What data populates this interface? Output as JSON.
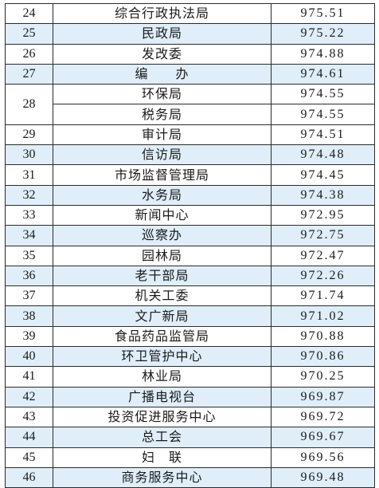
{
  "rows": [
    {
      "rank": "24",
      "unit": "综合行政执法局",
      "score": "975.51",
      "shaded": false
    },
    {
      "rank": "25",
      "unit": "民政局",
      "score": "975.22",
      "shaded": true
    },
    {
      "rank": "26",
      "unit": "发改委",
      "score": "974.88",
      "shaded": false
    },
    {
      "rank": "27",
      "unit": "编　　办",
      "score": "974.61",
      "shaded": true
    },
    {
      "rank": "28",
      "unit": "环保局",
      "score": "974.55",
      "shaded": false,
      "rowspan": 2
    },
    {
      "rank": "",
      "unit": "税务局",
      "score": "974.55",
      "shaded": false,
      "merged": true
    },
    {
      "rank": "29",
      "unit": "审计局",
      "score": "974.51",
      "shaded": false
    },
    {
      "rank": "30",
      "unit": "信访局",
      "score": "974.48",
      "shaded": true
    },
    {
      "rank": "31",
      "unit": "市场监督管理局",
      "score": "974.45",
      "shaded": false
    },
    {
      "rank": "32",
      "unit": "水务局",
      "score": "974.38",
      "shaded": true
    },
    {
      "rank": "33",
      "unit": "新闻中心",
      "score": "972.95",
      "shaded": false
    },
    {
      "rank": "34",
      "unit": "巡察办",
      "score": "972.75",
      "shaded": true
    },
    {
      "rank": "35",
      "unit": "园林局",
      "score": "972.47",
      "shaded": false
    },
    {
      "rank": "36",
      "unit": "老干部局",
      "score": "972.26",
      "shaded": true
    },
    {
      "rank": "37",
      "unit": "机关工委",
      "score": "971.74",
      "shaded": false
    },
    {
      "rank": "38",
      "unit": "文广新局",
      "score": "971.02",
      "shaded": true
    },
    {
      "rank": "39",
      "unit": "食品药品监管局",
      "score": "970.88",
      "shaded": false
    },
    {
      "rank": "40",
      "unit": "环卫管护中心",
      "score": "970.86",
      "shaded": true
    },
    {
      "rank": "41",
      "unit": "林业局",
      "score": "970.25",
      "shaded": false
    },
    {
      "rank": "42",
      "unit": "广播电视台",
      "score": "969.87",
      "shaded": true
    },
    {
      "rank": "43",
      "unit": "投资促进服务中心",
      "score": "969.72",
      "shaded": false
    },
    {
      "rank": "44",
      "unit": "总工会",
      "score": "969.67",
      "shaded": true
    },
    {
      "rank": "45",
      "unit": "妇　联",
      "score": "969.56",
      "shaded": false
    },
    {
      "rank": "46",
      "unit": "商务服务中心",
      "score": "969.48",
      "shaded": true
    }
  ],
  "colors": {
    "shaded_row": "#dfeef9",
    "plain_row": "#ffffff",
    "border": "#2b2b2b",
    "text": "#1a1a1a"
  }
}
